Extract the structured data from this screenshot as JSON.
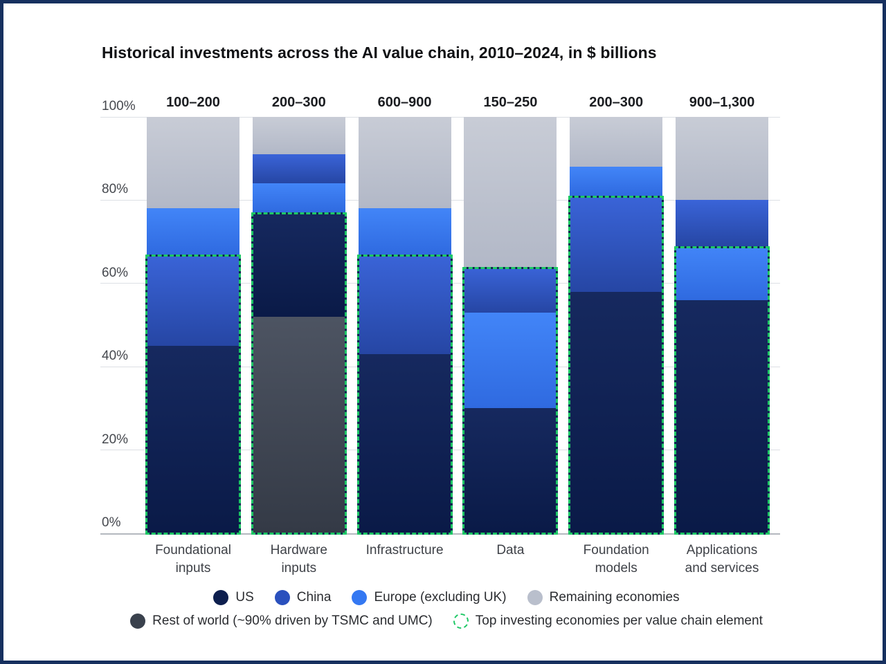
{
  "title": "Historical investments across the AI value chain, 2010–2024, in $ billions",
  "colors": {
    "us": "#0d1f4e",
    "china": "#2a50bd",
    "europe": "#3478f2",
    "remaining": "#b9bfcc",
    "rest_of_world": "#3a414d",
    "highlight_green": "#1ec866",
    "frame_border": "#16305f"
  },
  "chart_data": {
    "type": "bar",
    "stacked": true,
    "units": "percent of investment",
    "ylim": [
      0,
      100
    ],
    "grid": true,
    "yticks": [
      {
        "label": "100%",
        "value": 100
      },
      {
        "label": "80%",
        "value": 80
      },
      {
        "label": "60%",
        "value": 60
      },
      {
        "label": "40%",
        "value": 40
      },
      {
        "label": "20%",
        "value": 20
      },
      {
        "label": "0%",
        "value": 0
      }
    ],
    "categories": [
      "Foundational inputs",
      "Hardware inputs",
      "Infrastructure",
      "Data",
      "Foundation models",
      "Applications and services"
    ],
    "bars": [
      {
        "category": "Foundational inputs",
        "label_lines": [
          "Foundational",
          "inputs"
        ],
        "range_label": "100–200",
        "segments": [
          {
            "key": "us",
            "name": "US",
            "value": 45
          },
          {
            "key": "china",
            "name": "China",
            "value": 22
          },
          {
            "key": "europe",
            "name": "Europe (excluding UK)",
            "value": 11
          },
          {
            "key": "remaining",
            "name": "Remaining economies",
            "value": 22
          }
        ],
        "highlight_to": 67,
        "highlighted_segments": [
          "US",
          "China"
        ]
      },
      {
        "category": "Hardware inputs",
        "label_lines": [
          "Hardware",
          "inputs"
        ],
        "range_label": "200–300",
        "segments": [
          {
            "key": "row",
            "name": "Rest of world (~90% driven by TSMC and UMC)",
            "value": 52
          },
          {
            "key": "us",
            "name": "US",
            "value": 25
          },
          {
            "key": "europe",
            "name": "Europe (excluding UK)",
            "value": 7
          },
          {
            "key": "china",
            "name": "China",
            "value": 7
          },
          {
            "key": "remaining",
            "name": "Remaining economies",
            "value": 9
          }
        ],
        "highlight_to": 77,
        "highlighted_segments": [
          "Rest of world",
          "US"
        ]
      },
      {
        "category": "Infrastructure",
        "label_lines": [
          "Infrastructure"
        ],
        "range_label": "600–900",
        "segments": [
          {
            "key": "us",
            "name": "US",
            "value": 43
          },
          {
            "key": "china",
            "name": "China",
            "value": 24
          },
          {
            "key": "europe",
            "name": "Europe (excluding UK)",
            "value": 11
          },
          {
            "key": "remaining",
            "name": "Remaining economies",
            "value": 22
          }
        ],
        "highlight_to": 67,
        "highlighted_segments": [
          "US",
          "China"
        ]
      },
      {
        "category": "Data",
        "label_lines": [
          "Data"
        ],
        "range_label": "150–250",
        "segments": [
          {
            "key": "us",
            "name": "US",
            "value": 30
          },
          {
            "key": "europe",
            "name": "Europe (excluding UK)",
            "value": 23
          },
          {
            "key": "china",
            "name": "China",
            "value": 11
          },
          {
            "key": "remaining",
            "name": "Remaining economies",
            "value": 36
          }
        ],
        "highlight_to": 64,
        "highlighted_segments": [
          "US",
          "Europe (excluding UK)",
          "China"
        ]
      },
      {
        "category": "Foundation models",
        "label_lines": [
          "Foundation",
          "models"
        ],
        "range_label": "200–300",
        "segments": [
          {
            "key": "us",
            "name": "US",
            "value": 58
          },
          {
            "key": "china",
            "name": "China",
            "value": 23
          },
          {
            "key": "europe",
            "name": "Europe (excluding UK)",
            "value": 7
          },
          {
            "key": "remaining",
            "name": "Remaining economies",
            "value": 12
          }
        ],
        "highlight_to": 81,
        "highlighted_segments": [
          "US",
          "China"
        ]
      },
      {
        "category": "Applications and services",
        "label_lines": [
          "Applications",
          "and services"
        ],
        "range_label": "900–1,300",
        "segments": [
          {
            "key": "us",
            "name": "US",
            "value": 56
          },
          {
            "key": "europe",
            "name": "Europe (excluding UK)",
            "value": 13
          },
          {
            "key": "china",
            "name": "China",
            "value": 11
          },
          {
            "key": "remaining",
            "name": "Remaining economies",
            "value": 20
          }
        ],
        "highlight_to": 69,
        "highlighted_segments": [
          "US",
          "Europe (excluding UK)"
        ]
      }
    ],
    "legend_rows": [
      [
        {
          "key": "us",
          "label": "US"
        },
        {
          "key": "china",
          "label": "China"
        },
        {
          "key": "europe",
          "label": "Europe (excluding UK)"
        },
        {
          "key": "remaining",
          "label": "Remaining economies"
        }
      ],
      [
        {
          "key": "row",
          "label": "Rest of world (~90% driven by TSMC and UMC)"
        },
        {
          "key": "highlight",
          "label": "Top investing economies per value chain element"
        }
      ]
    ]
  }
}
